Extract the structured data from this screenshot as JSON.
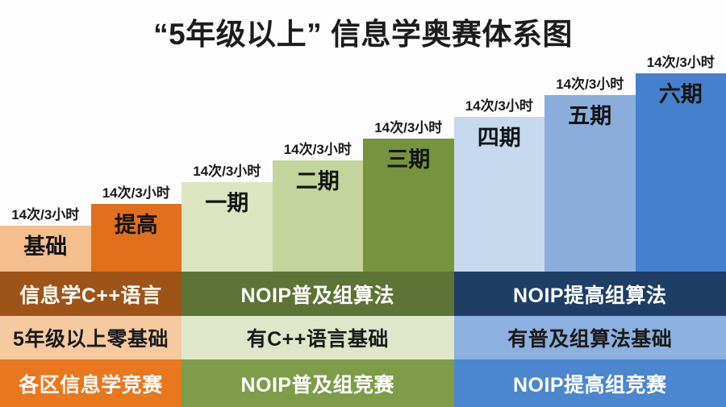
{
  "title": "“5年级以上” 信息学奥赛体系图",
  "title_color": "#1c1c1c",
  "background_color": "#fdfdfd",
  "bars": [
    {
      "label": "基础",
      "sessions": "14次/3小时",
      "color": "#F5BE8E",
      "text_color": "#141414"
    },
    {
      "label": "提高",
      "sessions": "14次/3小时",
      "color": "#E0701C",
      "text_color": "#141414"
    },
    {
      "label": "一期",
      "sessions": "14次/3小时",
      "color": "#DCE5C1",
      "text_color": "#141414"
    },
    {
      "label": "二期",
      "sessions": "14次/3小时",
      "color": "#C3D49C",
      "text_color": "#141414"
    },
    {
      "label": "三期",
      "sessions": "14次/3小时",
      "color": "#76933D",
      "text_color": "#141414"
    },
    {
      "label": "四期",
      "sessions": "14次/3小时",
      "color": "#C7D9EE",
      "text_color": "#141414"
    },
    {
      "label": "五期",
      "sessions": "14次/3小时",
      "color": "#8AADDC",
      "text_color": "#141414"
    },
    {
      "label": "六期",
      "sessions": "14次/3小时",
      "color": "#4680CC",
      "text_color": "#141414"
    }
  ],
  "matrix": {
    "rows": [
      {
        "name": "course-content",
        "cells": [
          {
            "text": "信息学C++语言",
            "bg": "#9E5419",
            "fg": "#FFFFFF"
          },
          {
            "text": "NOIP普及组算法",
            "bg": "#5E7336",
            "fg": "#FFFFFF"
          },
          {
            "text": "NOIP提高组算法",
            "bg": "#1F3E66",
            "fg": "#FFFFFF"
          }
        ]
      },
      {
        "name": "prerequisite",
        "cells": [
          {
            "text": "5年级以上零基础",
            "bg": "#F6CAA1",
            "fg": "#1A1A1A"
          },
          {
            "text": "有C++语言基础",
            "bg": "#DFE7CB",
            "fg": "#1A1A1A"
          },
          {
            "text": "有普及组算法基础",
            "bg": "#8CB0DF",
            "fg": "#1A1A1A"
          }
        ]
      },
      {
        "name": "competition",
        "cells": [
          {
            "text": "各区信息学竞赛",
            "bg": "#E8771E",
            "fg": "#FFFFFF"
          },
          {
            "text": "NOIP普及组竞赛",
            "bg": "#7E9C49",
            "fg": "#FFFFFF"
          },
          {
            "text": "NOIP提高组竞赛",
            "bg": "#4C86CF",
            "fg": "#FFFFFF"
          }
        ]
      }
    ]
  }
}
